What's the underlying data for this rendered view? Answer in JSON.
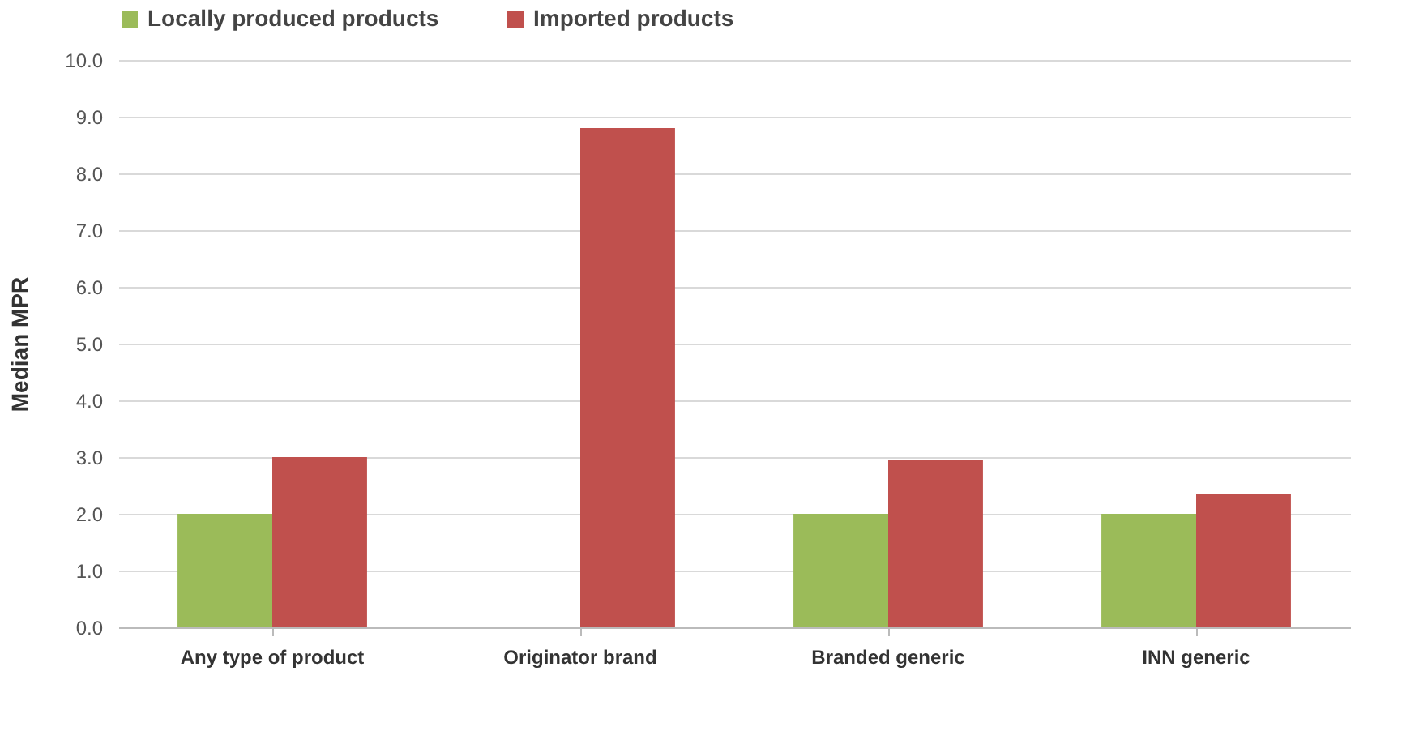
{
  "chart_data": {
    "type": "bar",
    "ylabel": "Median MPR",
    "categories": [
      "Any type of product",
      "Originator brand",
      "Branded generic",
      "INN generic"
    ],
    "series": [
      {
        "name": "Locally produced products",
        "color": "#9bbb59",
        "values": [
          2.0,
          null,
          2.0,
          2.0
        ]
      },
      {
        "name": "Imported products",
        "color": "#c0504d",
        "values": [
          3.0,
          8.8,
          2.95,
          2.35
        ]
      }
    ],
    "ylim": [
      0,
      10
    ],
    "yticks": [
      {
        "value": 0,
        "label": "0.0"
      },
      {
        "value": 1,
        "label": "1.0"
      },
      {
        "value": 2,
        "label": "2.0"
      },
      {
        "value": 3,
        "label": "3.0"
      },
      {
        "value": 4,
        "label": "4.0"
      },
      {
        "value": 5,
        "label": "5.0"
      },
      {
        "value": 6,
        "label": "6.0"
      },
      {
        "value": 7,
        "label": "7.0"
      },
      {
        "value": 8,
        "label": "8.0"
      },
      {
        "value": 9,
        "label": "9.0"
      },
      {
        "value": 10,
        "label": "10.0"
      }
    ],
    "grid": "y",
    "legend": "top"
  }
}
